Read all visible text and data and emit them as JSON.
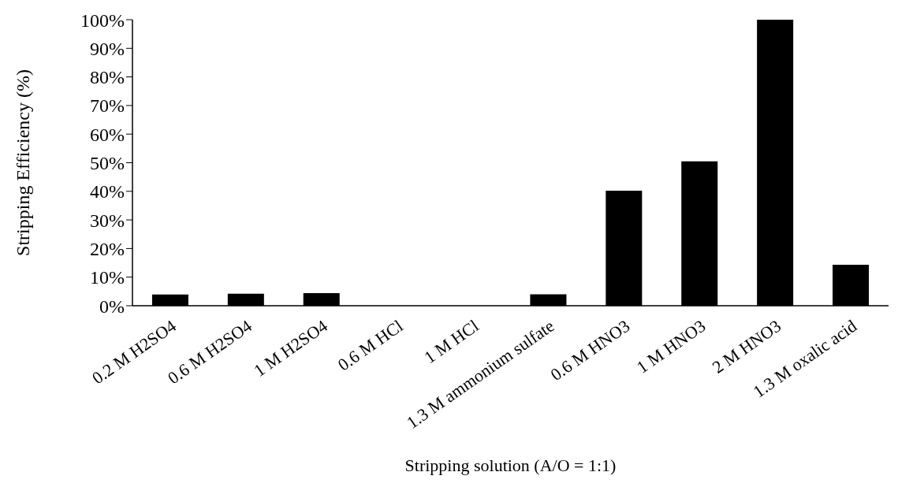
{
  "chart_data": {
    "type": "bar",
    "xlabel": "Stripping solution (A/O = 1:1)",
    "ylabel": "Stripping Efficiency (%)",
    "categories": [
      "0.2 M H2SO4",
      "0.6 M H2SO4",
      "1 M H2SO4",
      "0.6 M HCl",
      "1 M HCl",
      "1.3 M ammonium sulfate",
      "0.6 M HNO3",
      "1 M HNO3",
      "2 M HNO3",
      "1.3 M oxalic acid"
    ],
    "values": [
      3.9,
      4.2,
      4.4,
      0,
      0,
      4.0,
      40.2,
      50.5,
      100,
      14.3
    ],
    "color": "#000000",
    "ylim": [
      0,
      100
    ],
    "yticks": [
      {
        "value": 0,
        "label": "0%"
      },
      {
        "value": 10,
        "label": "10%"
      },
      {
        "value": 20,
        "label": "20%"
      },
      {
        "value": 30,
        "label": "30%"
      },
      {
        "value": 40,
        "label": "40%"
      },
      {
        "value": 50,
        "label": "50%"
      },
      {
        "value": 60,
        "label": "60%"
      },
      {
        "value": 70,
        "label": "70%"
      },
      {
        "value": 80,
        "label": "80%"
      },
      {
        "value": 90,
        "label": "90%"
      },
      {
        "value": 100,
        "label": "100%"
      }
    ],
    "grid": false,
    "legend": false
  }
}
